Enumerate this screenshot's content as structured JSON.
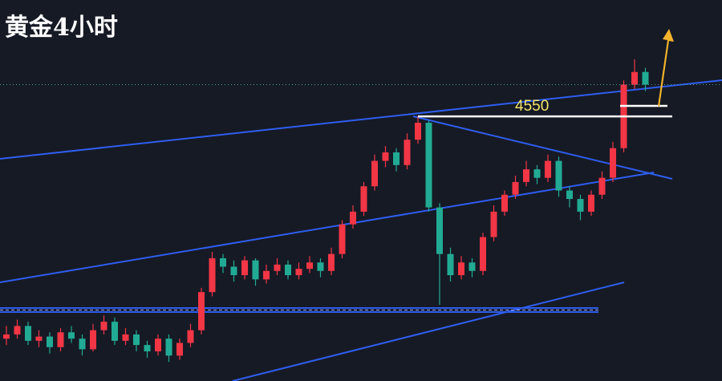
{
  "chart_data": {
    "type": "candlestick",
    "title": "黄金4小时",
    "ylim": [
      3900,
      4800
    ],
    "level": 4550,
    "up_color": "#f23645",
    "down_color": "#22ab94",
    "open": [
      4000,
      4010,
      4030,
      3995,
      4005,
      3980,
      4015,
      4000,
      3975,
      4020,
      4040,
      3995,
      4010,
      3985,
      3970,
      4000,
      3960,
      3990,
      4020,
      4110,
      4190,
      4170,
      4150,
      4185,
      4140,
      4160,
      4175,
      4150,
      4165,
      4180,
      4160,
      4200,
      4270,
      4300,
      4360,
      4420,
      4440,
      4410,
      4470,
      4510,
      4310,
      4200,
      4150,
      4180,
      4160,
      4240,
      4300,
      4340,
      4370,
      4400,
      4380,
      4420,
      4350,
      4330,
      4300,
      4340,
      4380,
      4450,
      4600,
      4630
    ],
    "high": [
      4030,
      4045,
      4040,
      4020,
      4015,
      4025,
      4030,
      4010,
      4035,
      4055,
      4050,
      4025,
      4020,
      3995,
      4010,
      4010,
      4000,
      4035,
      4120,
      4205,
      4200,
      4185,
      4195,
      4190,
      4175,
      4190,
      4185,
      4180,
      4195,
      4190,
      4215,
      4280,
      4315,
      4370,
      4435,
      4455,
      4450,
      4485,
      4525,
      4515,
      4320,
      4215,
      4195,
      4190,
      4250,
      4315,
      4350,
      4385,
      4420,
      4410,
      4435,
      4430,
      4360,
      4340,
      4350,
      4395,
      4465,
      4610,
      4660,
      4640
    ],
    "low": [
      3985,
      4000,
      3985,
      3980,
      3965,
      3970,
      3990,
      3960,
      3970,
      4010,
      3985,
      3985,
      3970,
      3955,
      3960,
      3945,
      3950,
      3980,
      4010,
      4100,
      4155,
      4135,
      4140,
      4125,
      4130,
      4150,
      4140,
      4140,
      4155,
      4145,
      4150,
      4190,
      4260,
      4290,
      4350,
      4405,
      4395,
      4400,
      4460,
      4300,
      4080,
      4135,
      4140,
      4145,
      4150,
      4230,
      4290,
      4330,
      4360,
      4365,
      4370,
      4335,
      4310,
      4280,
      4290,
      4330,
      4370,
      4440,
      4590,
      4585
    ],
    "close": [
      4010,
      4030,
      3995,
      4005,
      3980,
      4015,
      4000,
      3975,
      4020,
      4040,
      3995,
      4010,
      3985,
      3970,
      4000,
      3960,
      3990,
      4020,
      4110,
      4190,
      4170,
      4150,
      4185,
      4140,
      4160,
      4175,
      4150,
      4165,
      4180,
      4160,
      4200,
      4270,
      4300,
      4360,
      4420,
      4440,
      4410,
      4470,
      4510,
      4310,
      4200,
      4150,
      4180,
      4160,
      4240,
      4300,
      4340,
      4370,
      4400,
      4380,
      4420,
      4350,
      4330,
      4300,
      4340,
      4380,
      4450,
      4600,
      4630,
      4600
    ]
  }
}
